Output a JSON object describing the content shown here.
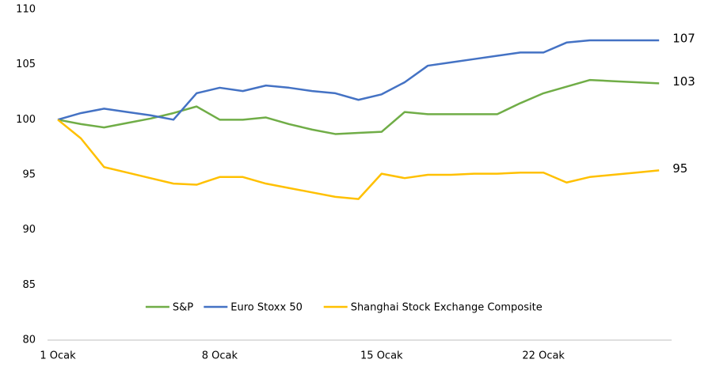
{
  "chart_data": {
    "type": "line",
    "categories": [
      "1 Ocak",
      null,
      null,
      null,
      null,
      null,
      null,
      "8 Ocak",
      null,
      null,
      null,
      null,
      null,
      null,
      "15 Ocak",
      null,
      null,
      null,
      null,
      null,
      null,
      "22 Ocak",
      null,
      null,
      null,
      null,
      null
    ],
    "series": [
      {
        "name": "S&P",
        "color": "#70ad47",
        "end_label": "103",
        "values": [
          100,
          99.6,
          99.3,
          99.7,
          100.1,
          100.6,
          101.2,
          100.0,
          100.0,
          100.2,
          99.6,
          99.1,
          98.7,
          98.8,
          98.9,
          100.7,
          100.5,
          100.5,
          100.5,
          100.5,
          101.5,
          102.4,
          103.0,
          103.6,
          103.5,
          103.4,
          103.3
        ]
      },
      {
        "name": "Euro Stoxx 50",
        "color": "#4472c4",
        "end_label": "107",
        "values": [
          100,
          100.6,
          101.0,
          100.7,
          100.4,
          100.0,
          102.4,
          102.9,
          102.6,
          103.1,
          102.9,
          102.6,
          102.4,
          101.8,
          102.3,
          103.4,
          104.9,
          105.2,
          105.5,
          105.8,
          106.1,
          106.1,
          107.0,
          107.2,
          107.2,
          107.2,
          107.2
        ]
      },
      {
        "name": "Shanghai Stock Exchange Composite",
        "color": "#ffc000",
        "end_label": "95",
        "values": [
          100,
          98.3,
          95.7,
          95.2,
          94.7,
          94.2,
          94.1,
          94.8,
          94.8,
          94.2,
          93.8,
          93.4,
          93.0,
          92.8,
          95.1,
          94.7,
          95.0,
          95.0,
          95.1,
          95.1,
          95.2,
          95.2,
          94.3,
          94.8,
          95.0,
          95.2,
          95.4
        ]
      }
    ],
    "ylim": [
      80,
      110
    ],
    "yticks": [
      80,
      85,
      90,
      95,
      100,
      105,
      110
    ],
    "grid": false,
    "legend": "bottom"
  }
}
